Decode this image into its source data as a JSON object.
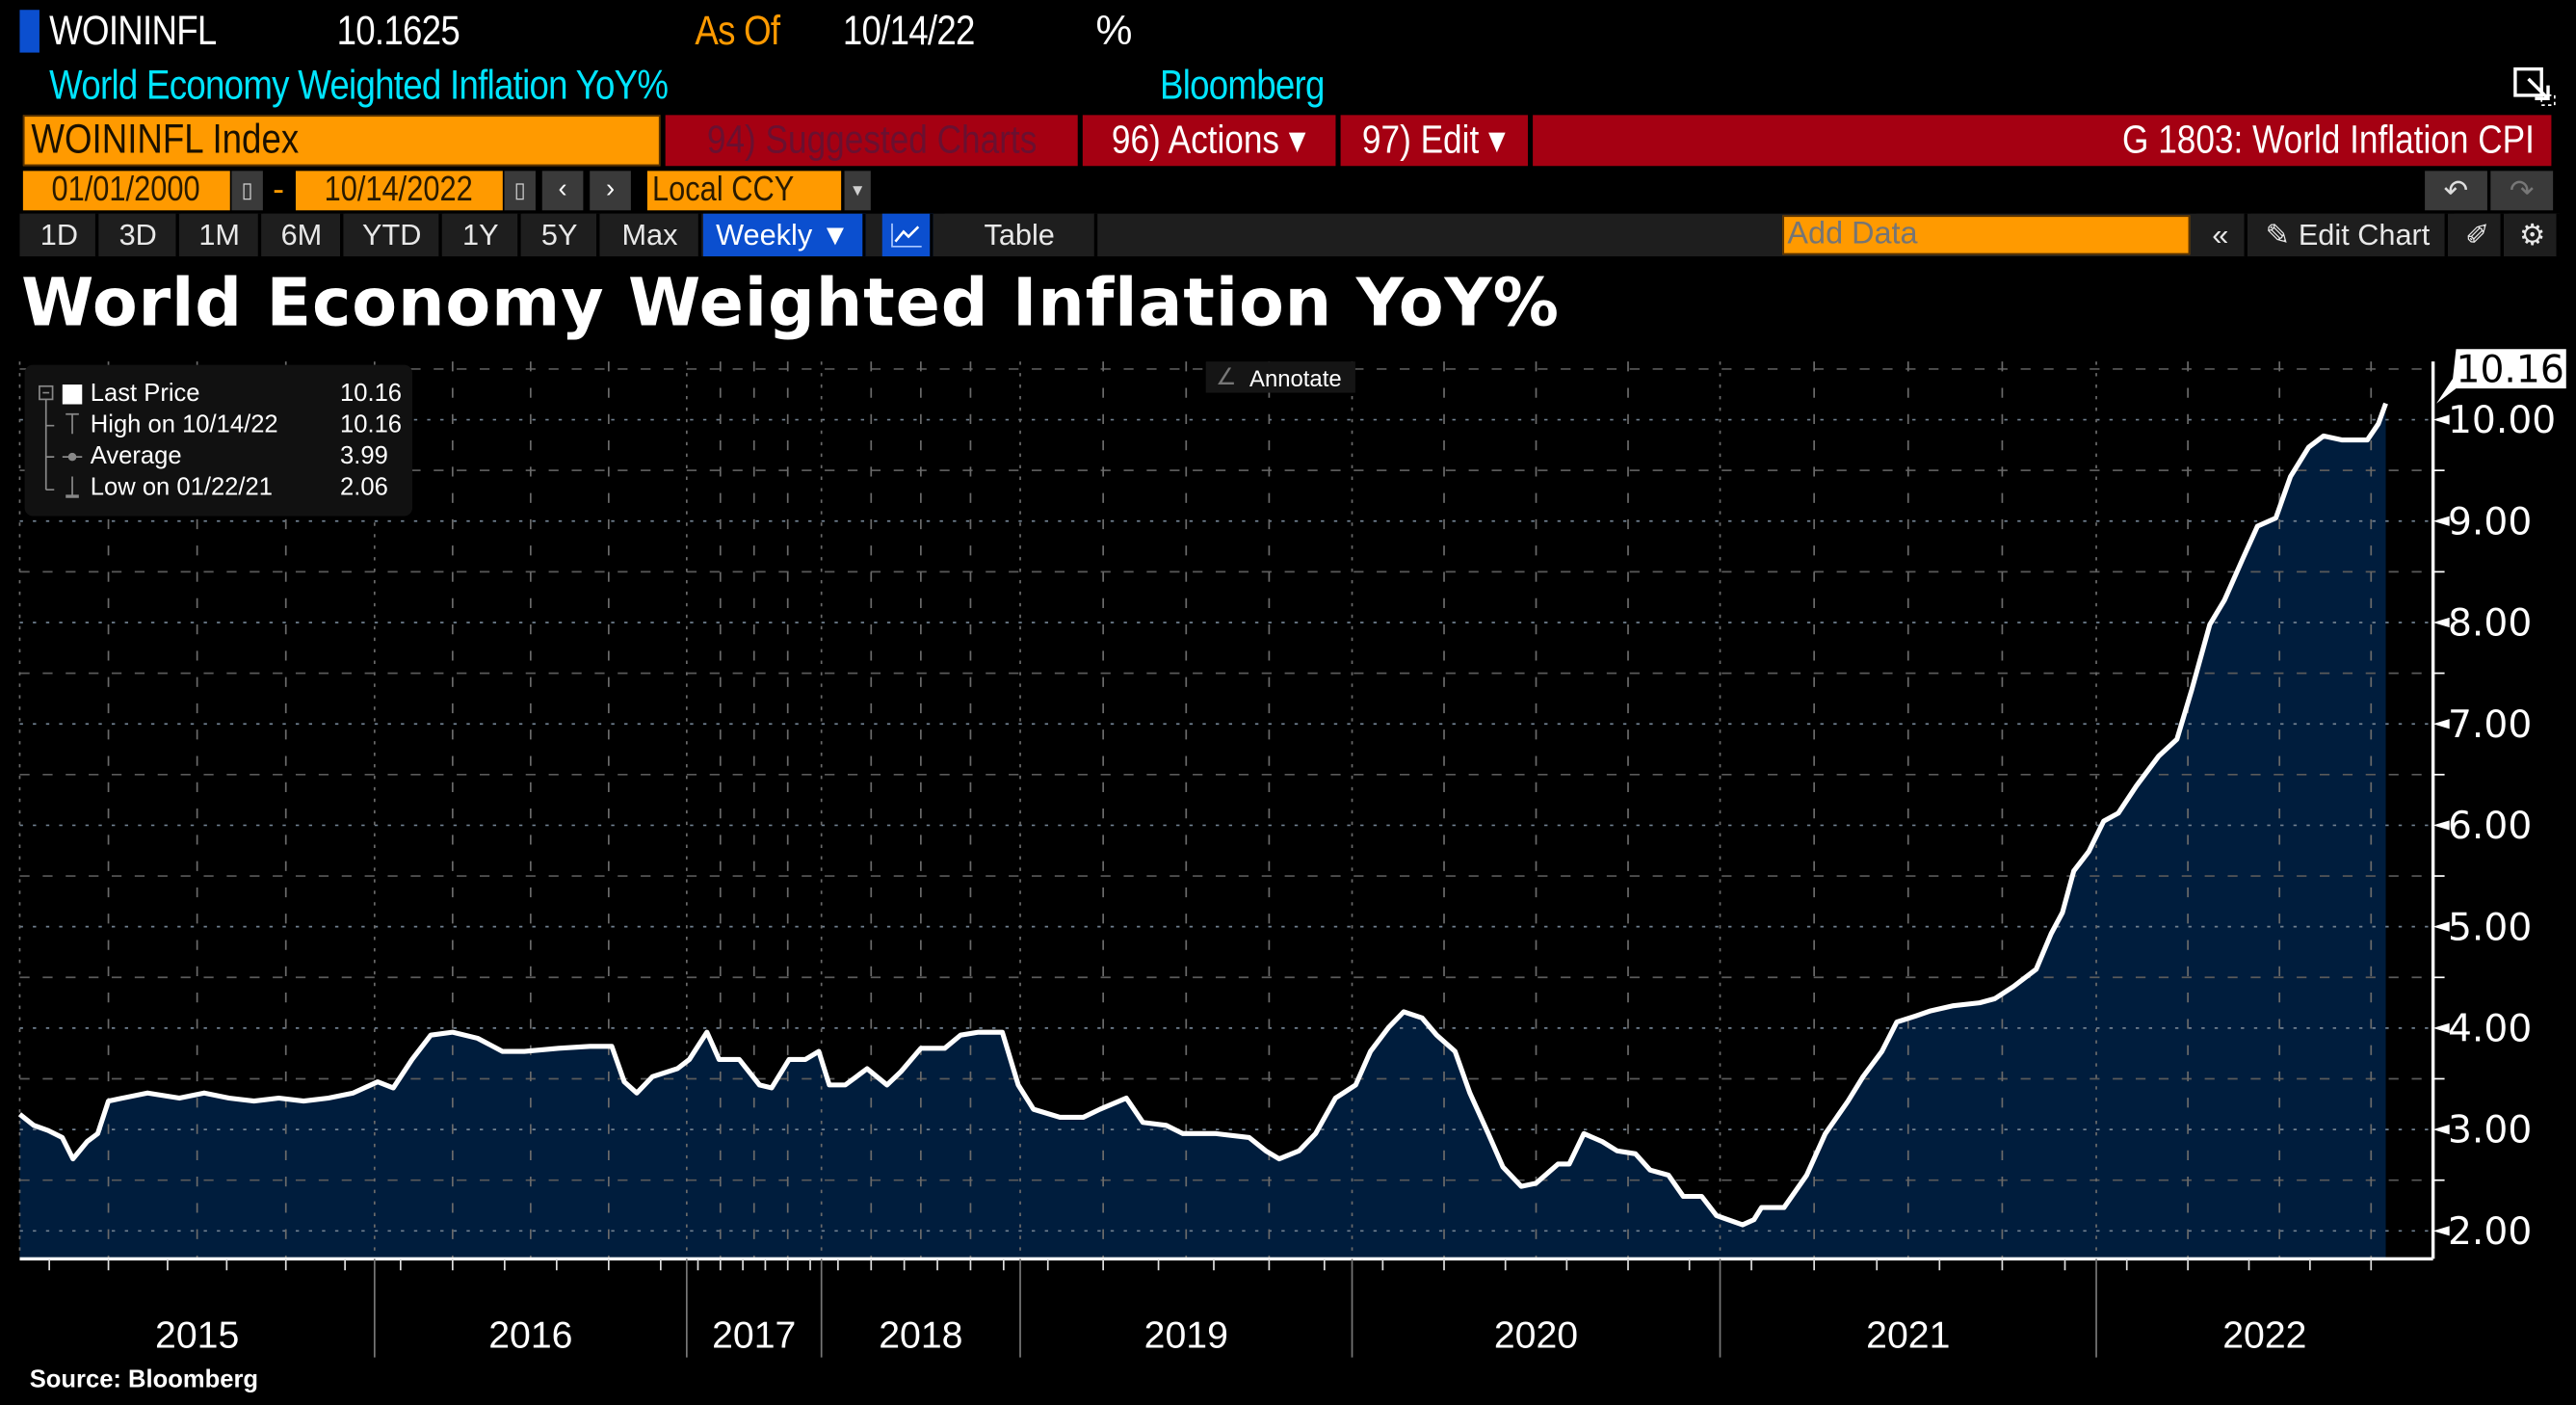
{
  "header": {
    "ticker": "WOININFL",
    "last_value": "10.1625",
    "as_of_label": "As Of",
    "as_of_date": "10/14/22",
    "unit": "%",
    "description": "World Economy Weighted Inflation YoY%",
    "source_name": "Bloomberg"
  },
  "command_bar": {
    "security": "WOININFL Index",
    "suggested_charts": "94) Suggested Charts",
    "actions": "96) Actions ▾",
    "edit": "97) Edit ▾",
    "chart_name": "G 1803: World Inflation CPI"
  },
  "date_bar": {
    "start_date": "01/01/2000",
    "separator": "-",
    "end_date": "10/14/2022",
    "currency": "Local CCY"
  },
  "toolbar": {
    "ranges": [
      "1D",
      "3D",
      "1M",
      "6M",
      "YTD",
      "1Y",
      "5Y",
      "Max"
    ],
    "frequency": "Weekly ▼",
    "table": "Table",
    "add_data_placeholder": "Add Data",
    "edit_chart": "Edit Chart"
  },
  "chart_title": "World Economy Weighted Inflation YoY%",
  "annotate_label": "Annotate",
  "legend": {
    "rows": [
      {
        "label": "Last Price",
        "value": "10.16"
      },
      {
        "label": "High on 10/14/22",
        "value": "10.16"
      },
      {
        "label": "Average",
        "value": "3.99"
      },
      {
        "label": "Low on 01/22/21",
        "value": "2.06"
      }
    ]
  },
  "source_note": "Source: Bloomberg",
  "colors": {
    "accent": "#ff9a00",
    "command_red": "#a50012",
    "area_fill": "#001d3d",
    "line": "#ffffff",
    "cyan": "#00e5ff",
    "selected": "#0b4fcf"
  },
  "chart_data": {
    "type": "area",
    "title": "World Economy Weighted Inflation YoY%",
    "x_tick_labels": [
      "2015",
      "2016",
      "2017",
      "2018",
      "2019",
      "2020",
      "2021",
      "2022"
    ],
    "y_tick_labels": [
      "2.00",
      "3.00",
      "4.00",
      "5.00",
      "6.00",
      "7.00",
      "8.00",
      "9.00",
      "10.00"
    ],
    "ylim": [
      1.72,
      10.85
    ],
    "grid": true,
    "y_axis_side": "right",
    "last_value_label": "10.16",
    "legend_placement": "top-left",
    "series": [
      {
        "name": "Last Price",
        "points": [
          [
            2015.0,
            3.15
          ],
          [
            2015.04,
            3.04
          ],
          [
            2015.08,
            2.99
          ],
          [
            2015.12,
            2.92
          ],
          [
            2015.15,
            2.71
          ],
          [
            2015.19,
            2.88
          ],
          [
            2015.22,
            2.96
          ],
          [
            2015.25,
            3.28
          ],
          [
            2015.29,
            3.31
          ],
          [
            2015.36,
            3.36
          ],
          [
            2015.45,
            3.31
          ],
          [
            2015.52,
            3.36
          ],
          [
            2015.59,
            3.31
          ],
          [
            2015.66,
            3.28
          ],
          [
            2015.73,
            3.31
          ],
          [
            2015.8,
            3.28
          ],
          [
            2015.87,
            3.31
          ],
          [
            2015.94,
            3.36
          ],
          [
            2016.01,
            3.47
          ],
          [
            2016.06,
            3.41
          ],
          [
            2016.12,
            3.69
          ],
          [
            2016.18,
            3.93
          ],
          [
            2016.25,
            3.96
          ],
          [
            2016.33,
            3.9
          ],
          [
            2016.41,
            3.77
          ],
          [
            2016.48,
            3.77
          ],
          [
            2016.59,
            3.8
          ],
          [
            2016.69,
            3.82
          ],
          [
            2016.76,
            3.82
          ],
          [
            2016.8,
            3.47
          ],
          [
            2016.84,
            3.36
          ],
          [
            2016.89,
            3.52
          ],
          [
            2016.97,
            3.6
          ],
          [
            2017.02,
            3.69
          ],
          [
            2017.15,
            3.96
          ],
          [
            2017.24,
            3.69
          ],
          [
            2017.39,
            3.69
          ],
          [
            2017.54,
            3.44
          ],
          [
            2017.63,
            3.41
          ],
          [
            2017.76,
            3.69
          ],
          [
            2017.88,
            3.69
          ],
          [
            2017.98,
            3.77
          ],
          [
            2018.04,
            3.44
          ],
          [
            2018.12,
            3.44
          ],
          [
            2018.23,
            3.6
          ],
          [
            2018.33,
            3.44
          ],
          [
            2018.4,
            3.57
          ],
          [
            2018.5,
            3.8
          ],
          [
            2018.62,
            3.8
          ],
          [
            2018.7,
            3.93
          ],
          [
            2018.79,
            3.96
          ],
          [
            2018.91,
            3.96
          ],
          [
            2018.99,
            3.44
          ],
          [
            2019.04,
            3.2
          ],
          [
            2019.12,
            3.12
          ],
          [
            2019.19,
            3.12
          ],
          [
            2019.24,
            3.2
          ],
          [
            2019.32,
            3.31
          ],
          [
            2019.37,
            3.07
          ],
          [
            2019.44,
            3.04
          ],
          [
            2019.49,
            2.96
          ],
          [
            2019.59,
            2.96
          ],
          [
            2019.69,
            2.92
          ],
          [
            2019.74,
            2.79
          ],
          [
            2019.78,
            2.71
          ],
          [
            2019.84,
            2.79
          ],
          [
            2019.89,
            2.96
          ],
          [
            2019.95,
            3.31
          ],
          [
            2020.01,
            3.44
          ],
          [
            2020.05,
            3.77
          ],
          [
            2020.1,
            4.01
          ],
          [
            2020.14,
            4.16
          ],
          [
            2020.19,
            4.1
          ],
          [
            2020.23,
            3.93
          ],
          [
            2020.28,
            3.77
          ],
          [
            2020.32,
            3.36
          ],
          [
            2020.37,
            2.96
          ],
          [
            2020.41,
            2.63
          ],
          [
            2020.46,
            2.44
          ],
          [
            2020.5,
            2.47
          ],
          [
            2020.56,
            2.66
          ],
          [
            2020.59,
            2.66
          ],
          [
            2020.63,
            2.96
          ],
          [
            2020.68,
            2.88
          ],
          [
            2020.72,
            2.79
          ],
          [
            2020.77,
            2.76
          ],
          [
            2020.81,
            2.6
          ],
          [
            2020.86,
            2.55
          ],
          [
            2020.9,
            2.34
          ],
          [
            2020.95,
            2.34
          ],
          [
            2020.99,
            2.15
          ],
          [
            2021.06,
            2.06
          ],
          [
            2021.09,
            2.11
          ],
          [
            2021.11,
            2.23
          ],
          [
            2021.17,
            2.23
          ],
          [
            2021.23,
            2.55
          ],
          [
            2021.28,
            2.96
          ],
          [
            2021.34,
            3.28
          ],
          [
            2021.38,
            3.52
          ],
          [
            2021.43,
            3.77
          ],
          [
            2021.47,
            4.06
          ],
          [
            2021.52,
            4.12
          ],
          [
            2021.56,
            4.17
          ],
          [
            2021.62,
            4.22
          ],
          [
            2021.69,
            4.25
          ],
          [
            2021.73,
            4.29
          ],
          [
            2021.78,
            4.41
          ],
          [
            2021.84,
            4.58
          ],
          [
            2021.88,
            4.93
          ],
          [
            2021.91,
            5.14
          ],
          [
            2021.94,
            5.55
          ],
          [
            2021.98,
            5.74
          ],
          [
            2022.02,
            6.04
          ],
          [
            2022.06,
            6.12
          ],
          [
            2022.11,
            6.39
          ],
          [
            2022.17,
            6.68
          ],
          [
            2022.22,
            6.85
          ],
          [
            2022.26,
            7.33
          ],
          [
            2022.31,
            7.98
          ],
          [
            2022.35,
            8.22
          ],
          [
            2022.4,
            8.63
          ],
          [
            2022.44,
            8.95
          ],
          [
            2022.49,
            9.03
          ],
          [
            2022.53,
            9.44
          ],
          [
            2022.58,
            9.73
          ],
          [
            2022.62,
            9.84
          ],
          [
            2022.67,
            9.8
          ],
          [
            2022.74,
            9.8
          ],
          [
            2022.77,
            9.96
          ],
          [
            2022.79,
            10.16
          ]
        ]
      }
    ]
  }
}
